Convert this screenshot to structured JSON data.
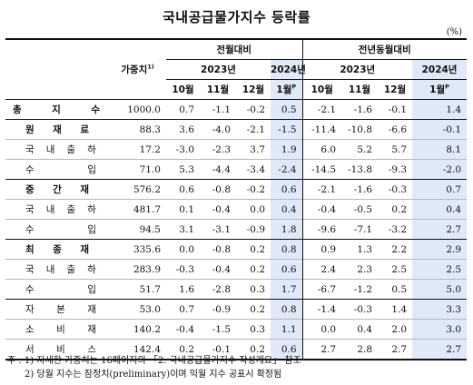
{
  "title": "국내공급물가지수 등락률",
  "unit": "(%)",
  "header": {
    "weight_label": "가중치",
    "weight_sup": "1)",
    "mom_label": "전월대비",
    "yoy_label": "전년동월대비",
    "year_2023": "2023년",
    "year_2024": "2024년",
    "months": [
      "10월",
      "11월",
      "12월"
    ],
    "jan_2024": "1월",
    "jan_sup": "P"
  },
  "rows": [
    {
      "label": "총 지 수",
      "indent": 0,
      "bold": true,
      "weight": "1000.0",
      "mom": [
        "0.7",
        "-1.1",
        "-0.2",
        "0.5"
      ],
      "yoy": [
        "-2.1",
        "-1.6",
        "-0.1",
        "1.4"
      ]
    },
    {
      "label": "원 재 료",
      "indent": 1,
      "bold": true,
      "weight": "88.3",
      "mom": [
        "3.6",
        "-4.0",
        "-2.1",
        "-1.5"
      ],
      "yoy": [
        "-11.4",
        "-10.8",
        "-6.6",
        "-0.1"
      ]
    },
    {
      "label": "국 내 출 하",
      "indent": 2,
      "bold": false,
      "weight": "17.2",
      "mom": [
        "-3.0",
        "-2.3",
        "3.7",
        "1.9"
      ],
      "yoy": [
        "6.0",
        "5.2",
        "5.7",
        "8.1"
      ]
    },
    {
      "label": "수 입",
      "indent": 2,
      "bold": false,
      "weight": "71.0",
      "mom": [
        "5.3",
        "-4.4",
        "-3.4",
        "-2.4"
      ],
      "yoy": [
        "-14.5",
        "-13.8",
        "-9.3",
        "-2.0"
      ]
    },
    {
      "label": "중 간 재",
      "indent": 1,
      "bold": true,
      "weight": "576.2",
      "mom": [
        "0.6",
        "-0.8",
        "-0.2",
        "0.6"
      ],
      "yoy": [
        "-2.1",
        "-1.6",
        "-0.3",
        "0.7"
      ]
    },
    {
      "label": "국 내 출 하",
      "indent": 2,
      "bold": false,
      "weight": "481.7",
      "mom": [
        "0.1",
        "-0.4",
        "0.0",
        "0.4"
      ],
      "yoy": [
        "-0.4",
        "-0.5",
        "0.2",
        "0.4"
      ]
    },
    {
      "label": "수 입",
      "indent": 2,
      "bold": false,
      "weight": "94.5",
      "mom": [
        "3.1",
        "-3.1",
        "-0.9",
        "1.8"
      ],
      "yoy": [
        "-9.6",
        "-7.1",
        "-3.2",
        "2.7"
      ]
    },
    {
      "label": "최 종 재",
      "indent": 1,
      "bold": true,
      "weight": "335.6",
      "mom": [
        "0.0",
        "-0.8",
        "0.2",
        "0.8"
      ],
      "yoy": [
        "0.9",
        "1.3",
        "2.2",
        "2.9"
      ]
    },
    {
      "label": "국 내 출 하",
      "indent": 2,
      "bold": false,
      "weight": "283.9",
      "mom": [
        "-0.3",
        "-0.4",
        "0.2",
        "0.6"
      ],
      "yoy": [
        "2.4",
        "2.3",
        "2.5",
        "2.5"
      ]
    },
    {
      "label": "수 입",
      "indent": 2,
      "bold": false,
      "weight": "51.7",
      "mom": [
        "1.6",
        "-2.8",
        "0.3",
        "1.7"
      ],
      "yoy": [
        "-6.7",
        "-1.2",
        "0.5",
        "5.0"
      ]
    },
    {
      "label": "자 본 재",
      "indent": 2,
      "bold": false,
      "weight": "53.0",
      "mom": [
        "0.7",
        "-0.9",
        "0.2",
        "0.8"
      ],
      "yoy": [
        "-1.4",
        "-0.3",
        "1.4",
        "3.3"
      ]
    },
    {
      "label": "소 비 재",
      "indent": 2,
      "bold": false,
      "weight": "140.2",
      "mom": [
        "-0.4",
        "-1.5",
        "0.3",
        "1.1"
      ],
      "yoy": [
        "0.0",
        "0.4",
        "2.0",
        "3.0"
      ]
    },
    {
      "label": "서 비 스",
      "indent": 2,
      "bold": false,
      "weight": "142.4",
      "mom": [
        "0.2",
        "-0.1",
        "0.2",
        "0.6"
      ],
      "yoy": [
        "2.7",
        "2.8",
        "2.7",
        "2.7"
      ]
    }
  ],
  "notes": [
    "주 : 1) 자세한 가중치는 16페이지의 「2. 국내공급물가지수 작성개요」 참조",
    "2) 당월 지수는 잠정치(preliminary)이며 익월 지수 공표시 확정됨"
  ]
}
